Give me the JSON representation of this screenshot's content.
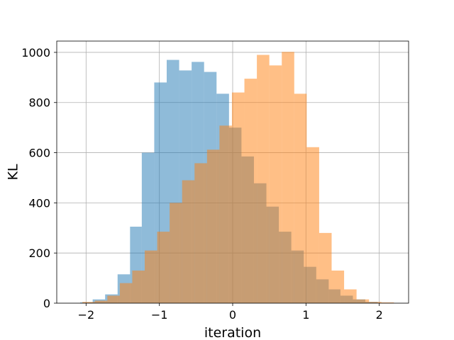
{
  "chart_data": {
    "type": "histogram",
    "xlabel": "iteration",
    "ylabel": "KL",
    "xlim": [
      -2.4,
      2.4
    ],
    "ylim": [
      0,
      1045
    ],
    "x_ticks": [
      -2,
      -1,
      0,
      1,
      2
    ],
    "x_tick_labels": [
      "−2",
      "−1",
      "0",
      "1",
      "2"
    ],
    "y_ticks": [
      0,
      200,
      400,
      600,
      800,
      1000
    ],
    "y_tick_labels": [
      "0",
      "200",
      "400",
      "600",
      "800",
      "1000"
    ],
    "grid": true,
    "legend": "none",
    "series": [
      {
        "color": "#1f77b4",
        "alpha": 0.5,
        "bin_edges": [
          -2.08,
          -1.91,
          -1.74,
          -1.57,
          -1.4,
          -1.24,
          -1.07,
          -0.9,
          -0.73,
          -0.56,
          -0.39,
          -0.22,
          -0.05,
          0.12,
          0.29,
          0.46,
          0.63,
          0.8,
          0.97,
          1.14,
          1.31,
          1.47,
          1.64,
          1.81,
          1.98
        ],
        "counts": [
          3,
          15,
          35,
          115,
          305,
          600,
          880,
          970,
          928,
          962,
          922,
          835,
          700,
          585,
          478,
          385,
          285,
          210,
          145,
          95,
          55,
          30,
          15,
          5
        ]
      },
      {
        "color": "#ff7f0e",
        "alpha": 0.5,
        "bin_edges": [
          -2.05,
          -1.88,
          -1.71,
          -1.54,
          -1.37,
          -1.2,
          -1.03,
          -0.86,
          -0.69,
          -0.52,
          -0.35,
          -0.18,
          -0.01,
          0.16,
          0.33,
          0.5,
          0.67,
          0.84,
          1.01,
          1.18,
          1.35,
          1.52,
          1.69,
          1.86,
          2.03,
          2.2
        ],
        "counts": [
          5,
          10,
          30,
          80,
          130,
          210,
          285,
          400,
          490,
          558,
          612,
          708,
          840,
          895,
          990,
          948,
          1002,
          835,
          622,
          280,
          130,
          55,
          15,
          5,
          3
        ]
      }
    ]
  }
}
